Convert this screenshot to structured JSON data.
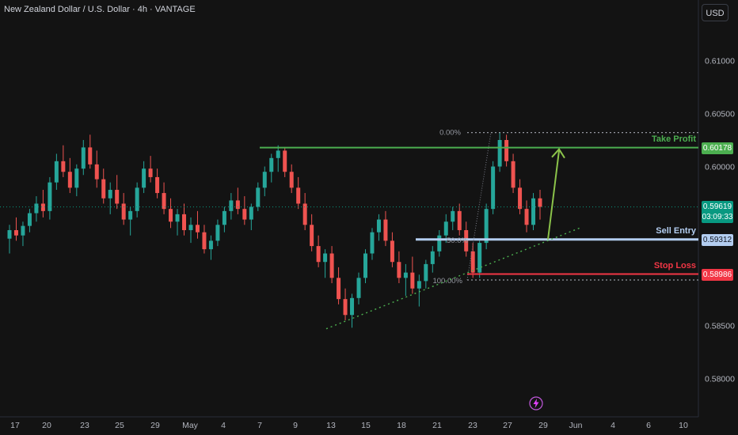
{
  "header": {
    "symbol_title": "New Zealand Dollar / U.S. Dollar · 4h · VANTAGE",
    "currency_button": "USD"
  },
  "colors": {
    "background": "#131313",
    "bull": "#26a69a",
    "bear": "#ef5350",
    "take_profit": "#4caf50",
    "stop_loss": "#f23645",
    "sell_entry": "#b3cdf0",
    "trendline": "#4caf50",
    "price_badge": "#089981"
  },
  "chart_data": {
    "type": "candlestick",
    "y_axis": {
      "range": [
        0.5764,
        0.6157
      ],
      "ticks": [
        "0.61000",
        "0.60500",
        "0.60000",
        "0.58500",
        "0.58000"
      ]
    },
    "x_axis": {
      "ticks": [
        "17",
        "20",
        "23",
        "25",
        "29",
        "May",
        "4",
        "7",
        "9",
        "13",
        "15",
        "18",
        "21",
        "23",
        "27",
        "29",
        "Jun",
        "4",
        "6",
        "10"
      ]
    },
    "candles": [
      [
        0.5932,
        0.5945,
        0.5918,
        0.594
      ],
      [
        0.594,
        0.5952,
        0.593,
        0.5935
      ],
      [
        0.5935,
        0.5948,
        0.5925,
        0.5944
      ],
      [
        0.5944,
        0.596,
        0.5938,
        0.5956
      ],
      [
        0.5956,
        0.5972,
        0.5948,
        0.5965
      ],
      [
        0.5965,
        0.5978,
        0.5952,
        0.5958
      ],
      [
        0.5958,
        0.599,
        0.595,
        0.5985
      ],
      [
        0.5985,
        0.6012,
        0.5978,
        0.6005
      ],
      [
        0.6005,
        0.602,
        0.599,
        0.5995
      ],
      [
        0.5995,
        0.6008,
        0.5975,
        0.598
      ],
      [
        0.598,
        0.6002,
        0.5972,
        0.5998
      ],
      [
        0.5998,
        0.6025,
        0.5992,
        0.6018
      ],
      [
        0.6018,
        0.603,
        0.5998,
        0.6002
      ],
      [
        0.6002,
        0.6015,
        0.598,
        0.5988
      ],
      [
        0.5988,
        0.5998,
        0.5965,
        0.597
      ],
      [
        0.597,
        0.5985,
        0.5955,
        0.5978
      ],
      [
        0.5978,
        0.5992,
        0.596,
        0.5965
      ],
      [
        0.5965,
        0.5975,
        0.5945,
        0.595
      ],
      [
        0.595,
        0.5962,
        0.5935,
        0.5958
      ],
      [
        0.5958,
        0.5985,
        0.5952,
        0.598
      ],
      [
        0.598,
        0.6005,
        0.5975,
        0.5998
      ],
      [
        0.5998,
        0.601,
        0.5985,
        0.599
      ],
      [
        0.599,
        0.5998,
        0.597,
        0.5975
      ],
      [
        0.5975,
        0.5985,
        0.5955,
        0.596
      ],
      [
        0.596,
        0.597,
        0.5942,
        0.5948
      ],
      [
        0.5948,
        0.596,
        0.5935,
        0.5955
      ],
      [
        0.5955,
        0.5965,
        0.5935,
        0.594
      ],
      [
        0.594,
        0.5952,
        0.5928,
        0.5945
      ],
      [
        0.5945,
        0.5958,
        0.5932,
        0.5938
      ],
      [
        0.5938,
        0.5945,
        0.5918,
        0.5922
      ],
      [
        0.5922,
        0.5935,
        0.5912,
        0.593
      ],
      [
        0.593,
        0.595,
        0.5925,
        0.5945
      ],
      [
        0.5945,
        0.5962,
        0.5938,
        0.5958
      ],
      [
        0.5958,
        0.5975,
        0.595,
        0.5968
      ],
      [
        0.5968,
        0.598,
        0.5955,
        0.596
      ],
      [
        0.596,
        0.5972,
        0.5945,
        0.595
      ],
      [
        0.595,
        0.5965,
        0.594,
        0.5962
      ],
      [
        0.5962,
        0.5985,
        0.5958,
        0.598
      ],
      [
        0.598,
        0.6,
        0.5972,
        0.5995
      ],
      [
        0.5995,
        0.6012,
        0.5985,
        0.6008
      ],
      [
        0.6008,
        0.602,
        0.5995,
        0.6015
      ],
      [
        0.6015,
        0.6018,
        0.599,
        0.5995
      ],
      [
        0.5995,
        0.6002,
        0.5975,
        0.598
      ],
      [
        0.598,
        0.599,
        0.596,
        0.5965
      ],
      [
        0.5965,
        0.5975,
        0.594,
        0.5945
      ],
      [
        0.5945,
        0.5955,
        0.592,
        0.5925
      ],
      [
        0.5925,
        0.5935,
        0.5905,
        0.591
      ],
      [
        0.591,
        0.5922,
        0.5895,
        0.5918
      ],
      [
        0.5918,
        0.5925,
        0.589,
        0.5895
      ],
      [
        0.5895,
        0.5905,
        0.587,
        0.5875
      ],
      [
        0.5875,
        0.5885,
        0.5855,
        0.586
      ],
      [
        0.586,
        0.588,
        0.5848,
        0.5876
      ],
      [
        0.5876,
        0.59,
        0.587,
        0.5895
      ],
      [
        0.5895,
        0.5922,
        0.589,
        0.5918
      ],
      [
        0.5918,
        0.5942,
        0.5912,
        0.5938
      ],
      [
        0.5938,
        0.5955,
        0.593,
        0.595
      ],
      [
        0.595,
        0.5958,
        0.5925,
        0.593
      ],
      [
        0.593,
        0.5938,
        0.5905,
        0.591
      ],
      [
        0.591,
        0.592,
        0.589,
        0.5895
      ],
      [
        0.5895,
        0.5908,
        0.5878,
        0.59
      ],
      [
        0.59,
        0.5915,
        0.588,
        0.5885
      ],
      [
        0.5885,
        0.5898,
        0.5868,
        0.5892
      ],
      [
        0.5892,
        0.5912,
        0.5885,
        0.5908
      ],
      [
        0.5908,
        0.5925,
        0.59,
        0.592
      ],
      [
        0.592,
        0.594,
        0.5915,
        0.5935
      ],
      [
        0.5935,
        0.5955,
        0.5928,
        0.5948
      ],
      [
        0.5948,
        0.5962,
        0.594,
        0.5958
      ],
      [
        0.5958,
        0.5965,
        0.5935,
        0.594
      ],
      [
        0.594,
        0.5948,
        0.5915,
        0.592
      ],
      [
        0.592,
        0.5928,
        0.5895,
        0.59
      ],
      [
        0.59,
        0.593,
        0.5895,
        0.5928
      ],
      [
        0.5928,
        0.5965,
        0.5922,
        0.596
      ],
      [
        0.596,
        0.6005,
        0.5955,
        0.6
      ],
      [
        0.6,
        0.6032,
        0.5995,
        0.6025
      ],
      [
        0.6025,
        0.603,
        0.6,
        0.6005
      ],
      [
        0.6005,
        0.6012,
        0.5975,
        0.598
      ],
      [
        0.598,
        0.5988,
        0.5955,
        0.596
      ],
      [
        0.596,
        0.5968,
        0.5938,
        0.5945
      ],
      [
        0.5945,
        0.5975,
        0.594,
        0.597
      ],
      [
        0.597,
        0.5978,
        0.595,
        0.5962
      ]
    ],
    "levels": {
      "take_profit": {
        "label": "Take Profit",
        "value": 0.60178,
        "badge": "0.60178"
      },
      "sell_entry": {
        "label": "Sell Entry",
        "value": 0.59312,
        "badge": "0.59312"
      },
      "stop_loss": {
        "label": "Stop Loss",
        "value": 0.58986,
        "badge": "0.58986"
      },
      "current_price": {
        "value": 0.59619,
        "badge": "0.59619",
        "countdown": "03:09:33"
      }
    },
    "fibonacci": {
      "high": 0.6032,
      "low": 0.5893,
      "labels": {
        "top": "0.00%",
        "mid": "50.0%",
        "bottom": "100.00%"
      }
    },
    "trendline": {
      "from": 0.5847,
      "to": 0.5942
    }
  }
}
